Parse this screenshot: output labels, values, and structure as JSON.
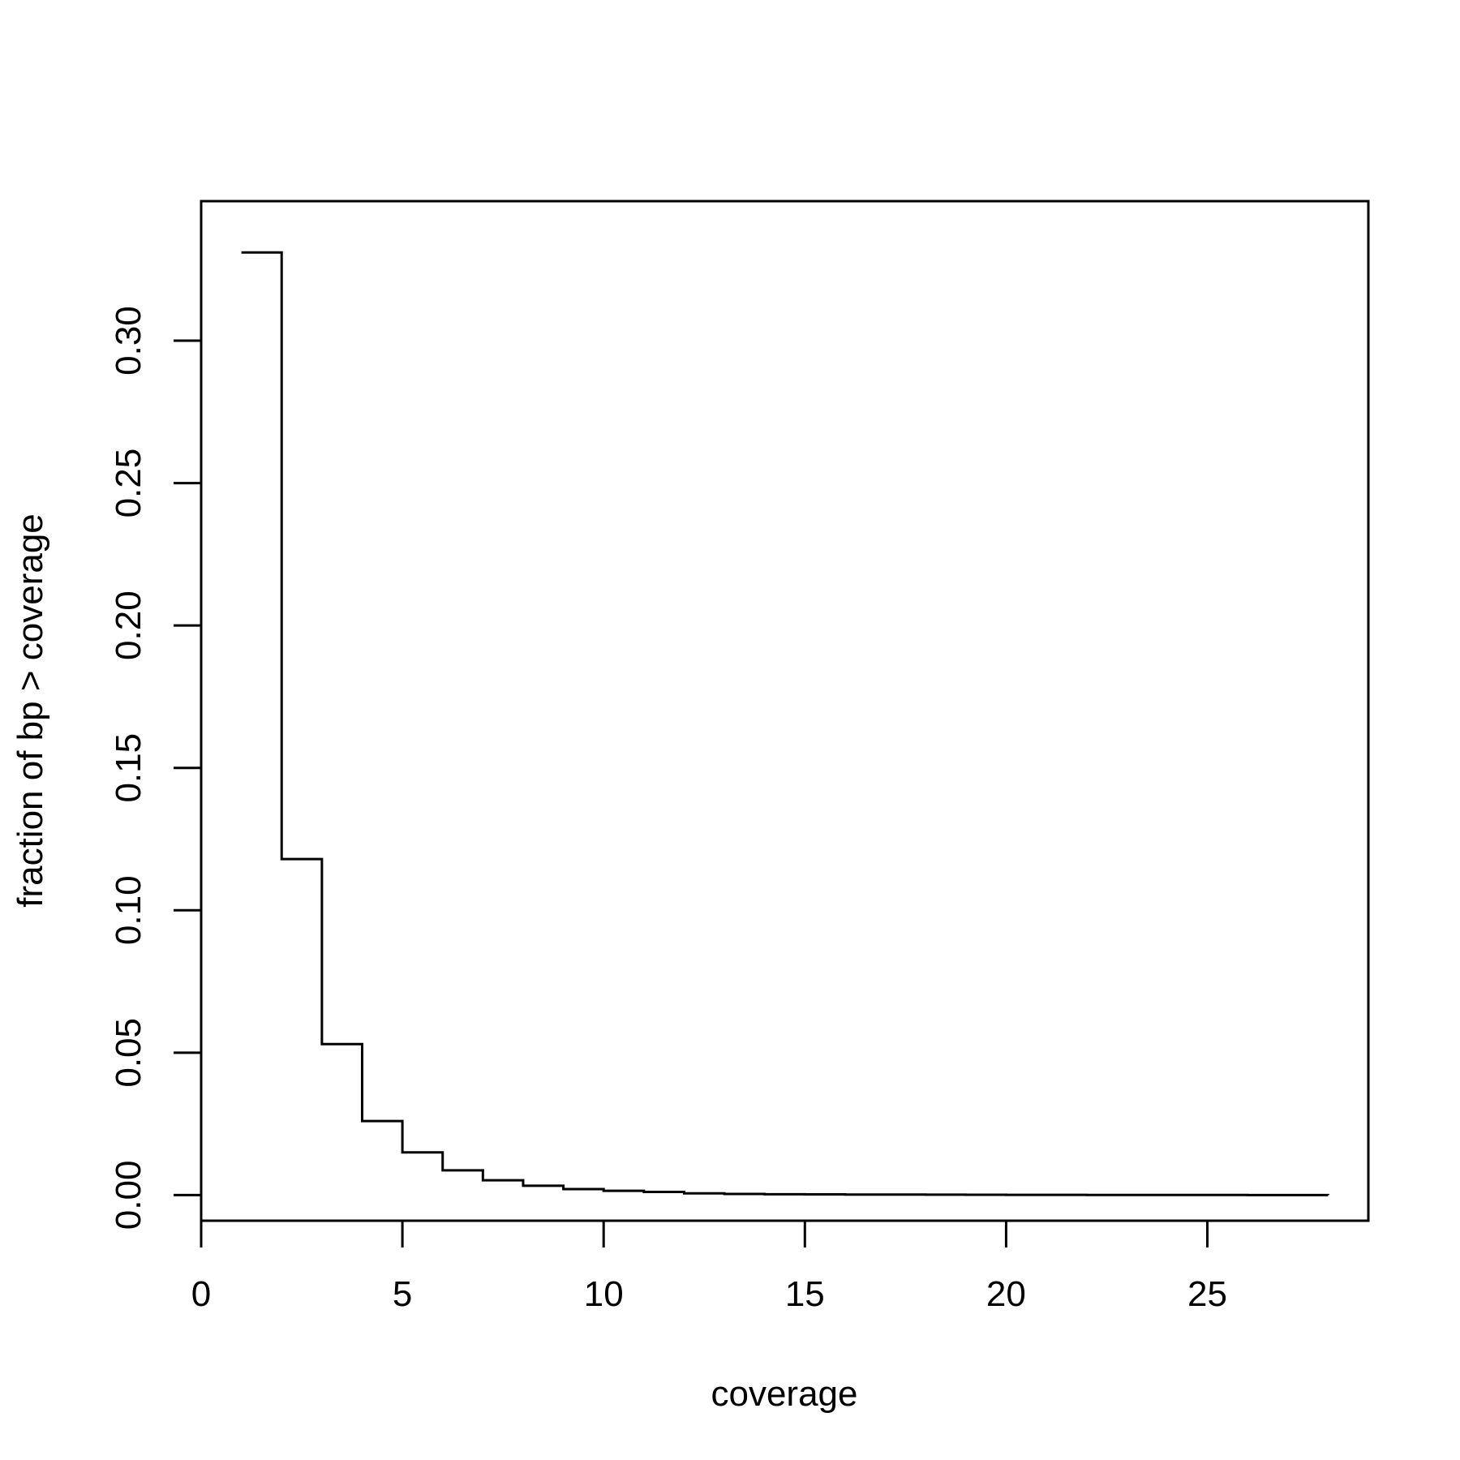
{
  "chart_data": {
    "type": "line",
    "subtype": "step",
    "title": "",
    "xlabel": "coverage",
    "ylabel": "fraction of bp > coverage",
    "xlim": [
      0,
      29
    ],
    "ylim": [
      -0.009,
      0.349
    ],
    "x_ticks": [
      0,
      5,
      10,
      15,
      20,
      25
    ],
    "x_tick_labels": [
      "0",
      "5",
      "10",
      "15",
      "20",
      "25"
    ],
    "y_ticks": [
      0.0,
      0.05,
      0.1,
      0.15,
      0.2,
      0.25,
      0.3
    ],
    "y_tick_labels": [
      "0.00",
      "0.05",
      "0.10",
      "0.15",
      "0.20",
      "0.25",
      "0.30"
    ],
    "grid": false,
    "legend": "none",
    "series": [
      {
        "name": "fraction",
        "x": [
          1,
          2,
          3,
          4,
          5,
          6,
          7,
          8,
          9,
          10,
          11,
          12,
          13,
          14,
          15,
          16,
          17,
          18,
          19,
          20,
          21,
          22,
          23,
          24,
          25,
          26,
          27,
          28
        ],
        "y": [
          0.331,
          0.118,
          0.053,
          0.026,
          0.015,
          0.0087,
          0.0052,
          0.0033,
          0.0021,
          0.0015,
          0.0011,
          0.0006,
          0.0004,
          0.0003,
          0.00025,
          0.0002,
          0.00018,
          0.00015,
          0.0001,
          9e-05,
          8e-05,
          6e-05,
          5e-05,
          4e-05,
          3e-05,
          2e-05,
          1e-05,
          0.0
        ]
      }
    ],
    "colors": {
      "line": "#000000",
      "axis": "#000000",
      "background": "#ffffff"
    }
  }
}
